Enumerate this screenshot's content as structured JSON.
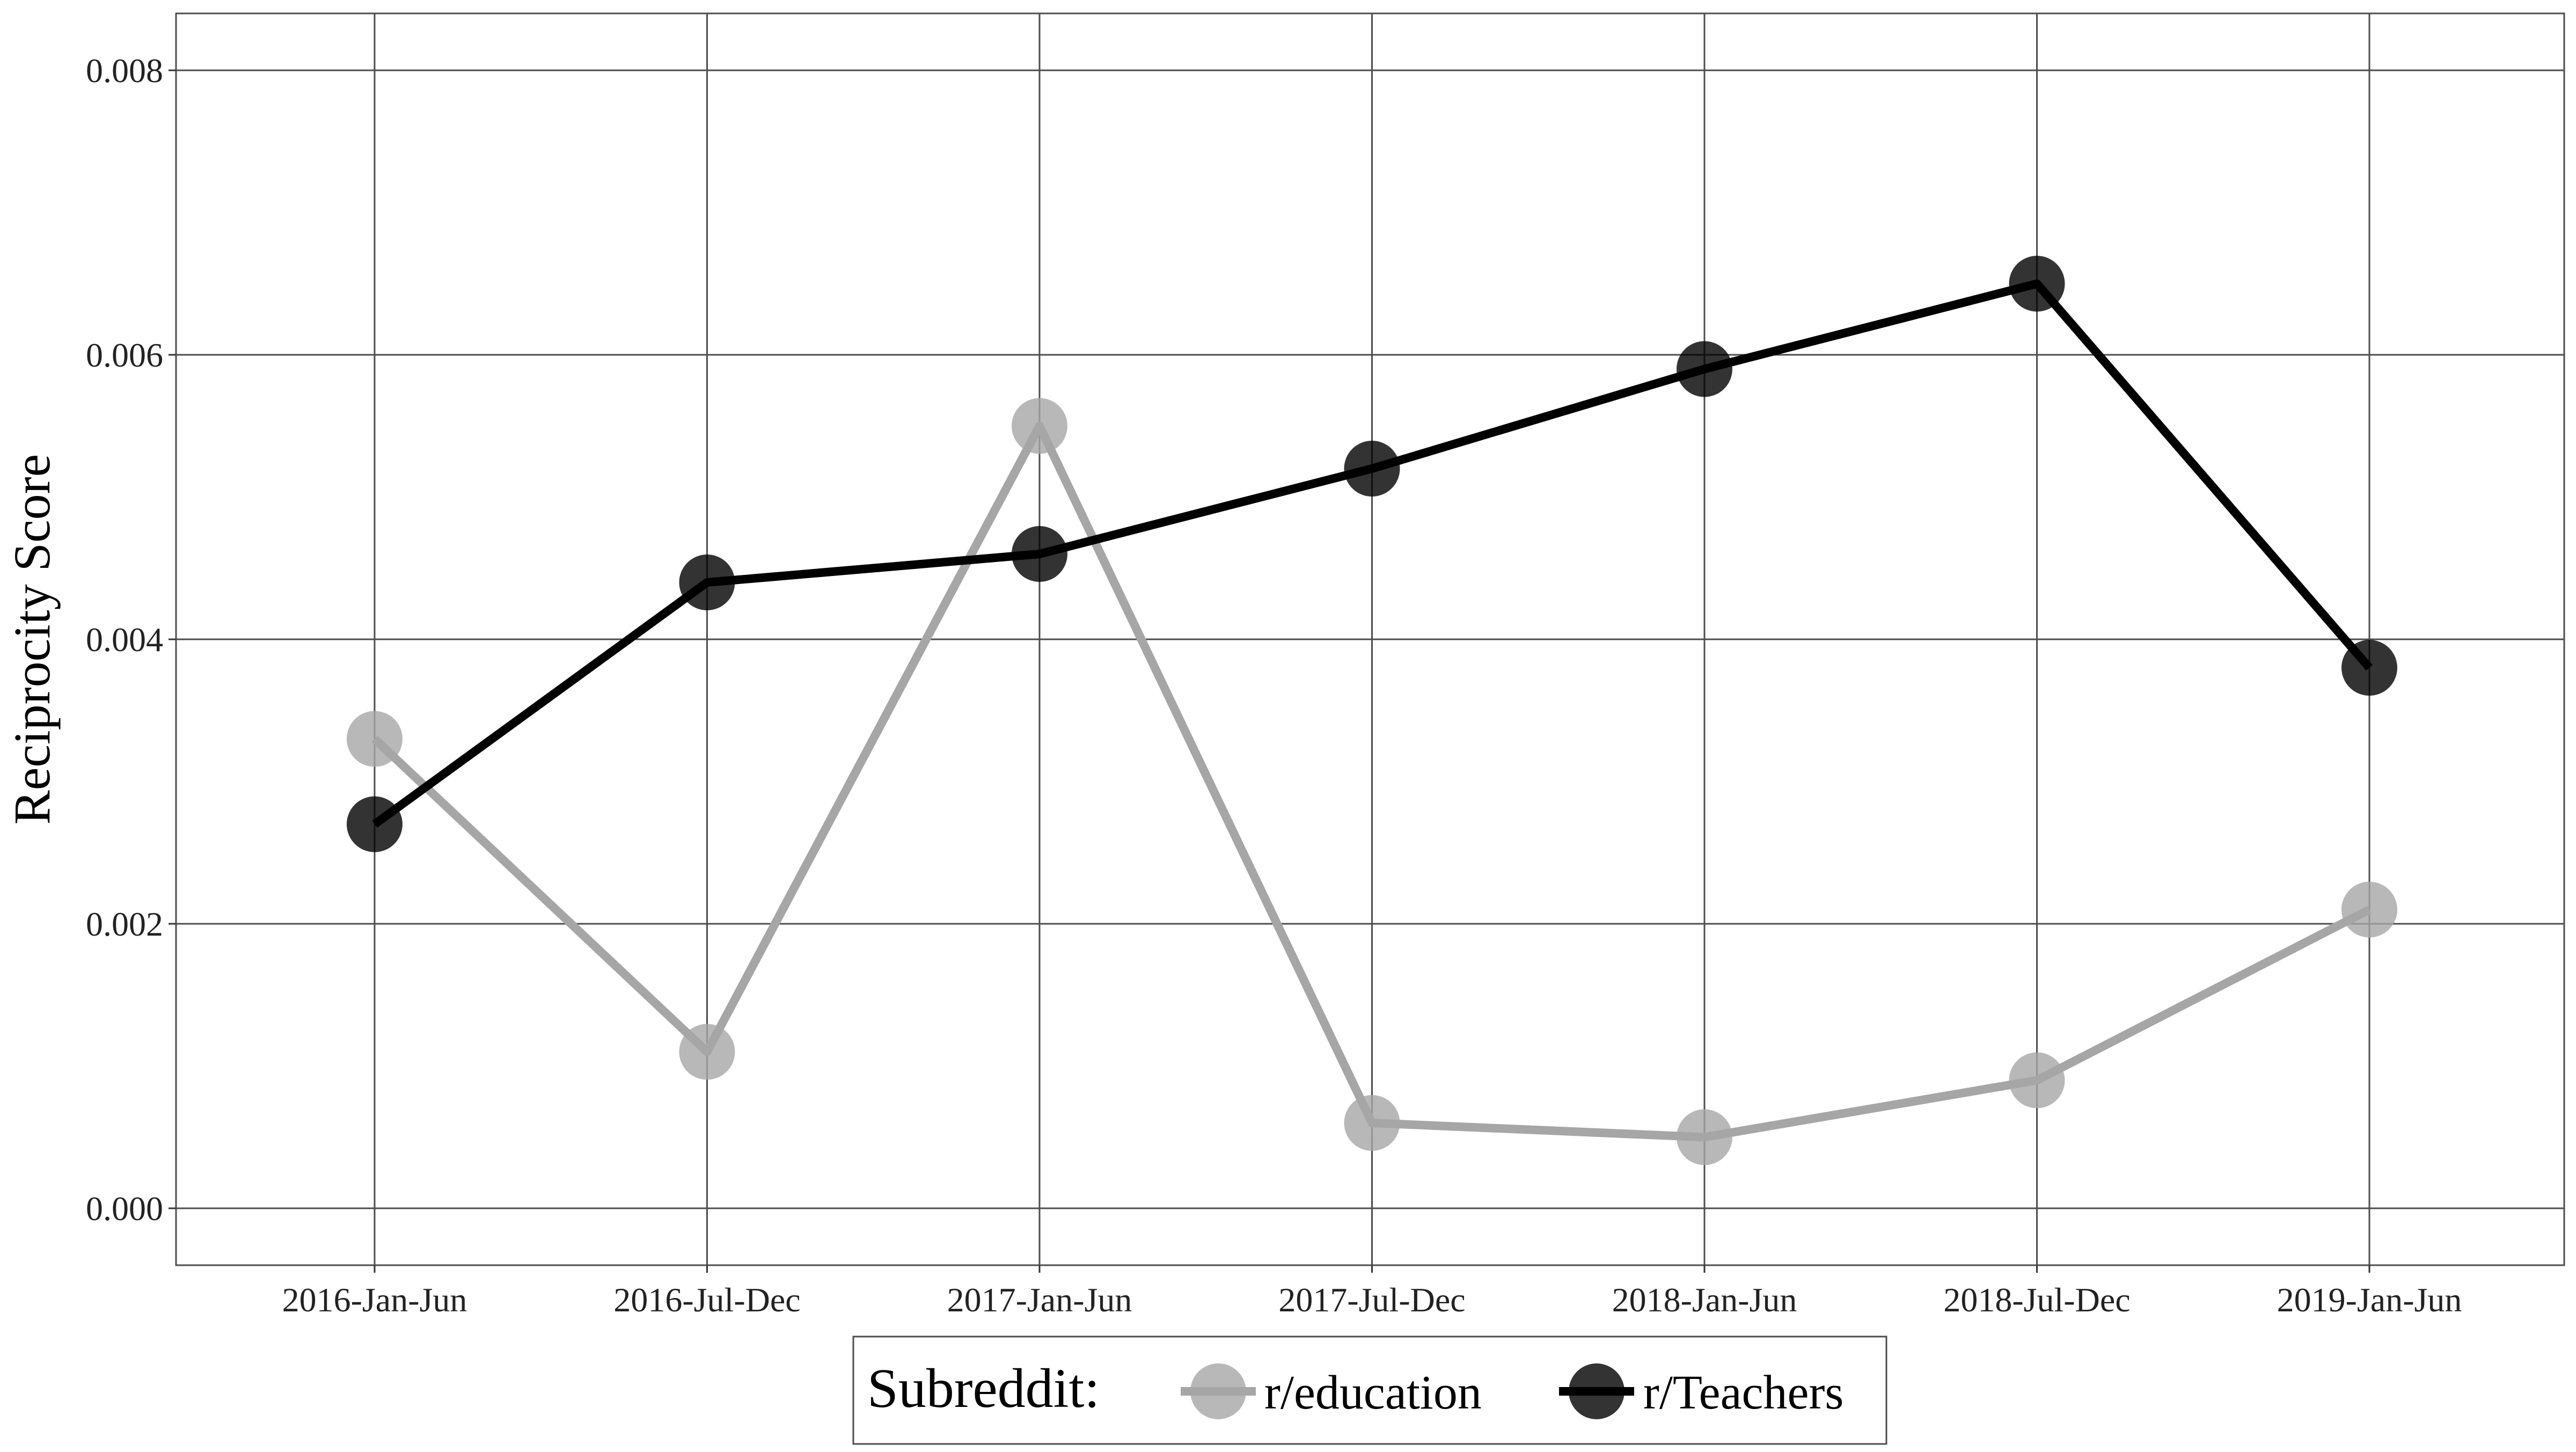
{
  "chart_data": {
    "type": "line",
    "title": "",
    "xlabel": "",
    "ylabel": "Reciprocity Score",
    "categories": [
      "2016-Jan-Jun",
      "2016-Jul-Dec",
      "2017-Jan-Jun",
      "2017-Jul-Dec",
      "2018-Jan-Jun",
      "2018-Jul-Dec",
      "2019-Jan-Jun"
    ],
    "y_ticks": [
      "0.000",
      "0.002",
      "0.004",
      "0.006",
      "0.008"
    ],
    "ylim": [
      -0.0004,
      0.0084
    ],
    "grid": true,
    "legend": {
      "title": "Subreddit:",
      "position": "bottom"
    },
    "series": [
      {
        "name": "r/education",
        "color": "#a6a6a6",
        "values": [
          0.0033,
          0.0011,
          0.0055,
          0.0006,
          0.0005,
          0.0009,
          0.0021
        ]
      },
      {
        "name": "r/Teachers",
        "color": "#000000",
        "values": [
          0.0027,
          0.0044,
          0.0046,
          0.0052,
          0.0059,
          0.0065,
          0.0038
        ]
      }
    ]
  }
}
